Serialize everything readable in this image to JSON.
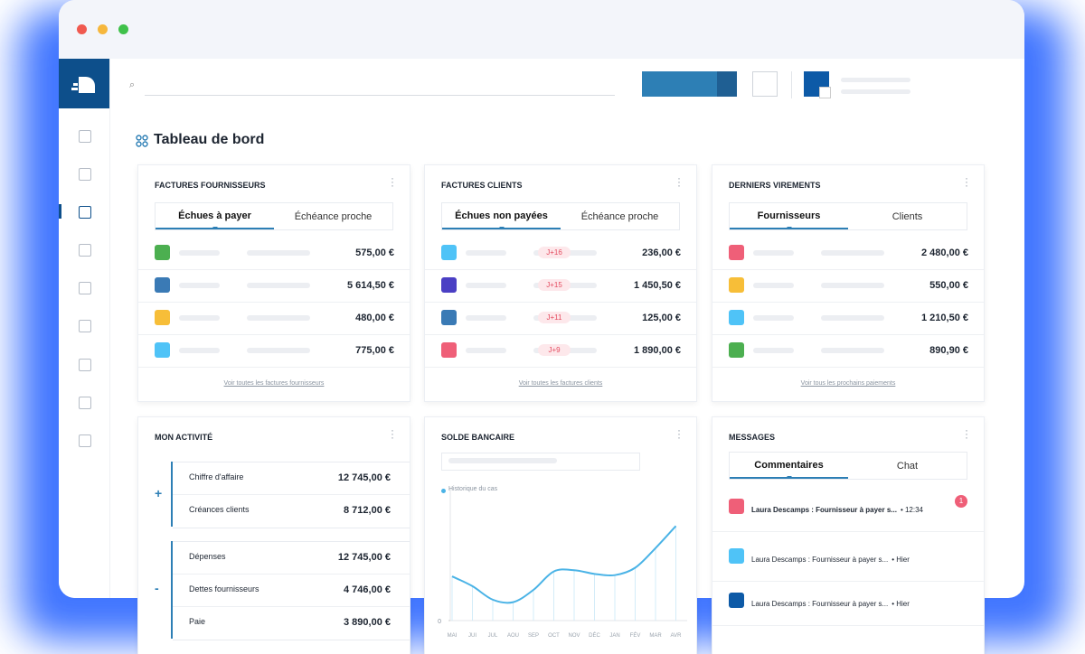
{
  "page": {
    "title": "Tableau de bord"
  },
  "cards": [
    {
      "title": "FACTURES FOURNISSEURS",
      "tabs": [
        "Échues à payer",
        "Échéance proche"
      ],
      "rows": [
        {
          "color": "#4caf50",
          "amount": "575,00 €"
        },
        {
          "color": "#3a7ab5",
          "amount": "5 614,50 €"
        },
        {
          "color": "#f7be38",
          "amount": "480,00 €"
        },
        {
          "color": "#4fc3f7",
          "amount": "775,00 €"
        }
      ],
      "link": "Voir toutes les factures fournisseurs"
    },
    {
      "title": "FACTURES CLIENTS",
      "tabs": [
        "Échues non payées",
        "Échéance proche"
      ],
      "rows": [
        {
          "color": "#4fc3f7",
          "badge": "J+16",
          "amount": "236,00 €"
        },
        {
          "color": "#4a3fc4",
          "badge": "J+15",
          "amount": "1 450,50 €"
        },
        {
          "color": "#3a7ab5",
          "badge": "J+11",
          "amount": "125,00 €"
        },
        {
          "color": "#ef5f78",
          "badge": "J+9",
          "amount": "1 890,00 €"
        }
      ],
      "link": "Voir toutes les factures clients"
    },
    {
      "title": "DERNIERS VIREMENTS",
      "tabs": [
        "Fournisseurs",
        "Clients"
      ],
      "rows": [
        {
          "color": "#ef5f78",
          "amount": "2 480,00 €"
        },
        {
          "color": "#f7be38",
          "amount": "550,00 €"
        },
        {
          "color": "#4fc3f7",
          "amount": "1 210,50 €"
        },
        {
          "color": "#4caf50",
          "amount": "890,90 €"
        }
      ],
      "link": "Voir tous les prochains paiements"
    }
  ],
  "activity": {
    "title": "MON ACTIVITÉ",
    "groups": [
      {
        "sign": "+",
        "rows": [
          {
            "label": "Chiffre d'affaire",
            "amount": "12 745,00 €"
          },
          {
            "label": "Créances clients",
            "amount": "8 712,00 €"
          }
        ]
      },
      {
        "sign": "-",
        "rows": [
          {
            "label": "Dépenses",
            "amount": "12 745,00 €"
          },
          {
            "label": "Dettes fournisseurs",
            "amount": "4 746,00 €"
          },
          {
            "label": "Paie",
            "amount": "3 890,00 €"
          }
        ]
      }
    ]
  },
  "chart_data": {
    "type": "line",
    "title": "SOLDE BANCAIRE",
    "legend": "Historique du cas",
    "categories": [
      "MAI",
      "JUI",
      "JUL",
      "AOU",
      "SEP",
      "OCT",
      "NOV",
      "DÉC",
      "JAN",
      "FÉV",
      "MAR",
      "AVR"
    ],
    "series": [
      {
        "name": "Historique du cas",
        "color": "#4ab3e6",
        "values": [
          36,
          28,
          17,
          15,
          25,
          40,
          41,
          38,
          37,
          43,
          59,
          77
        ]
      }
    ],
    "ylim": [
      0,
      100
    ],
    "yticks": [
      0
    ]
  },
  "messages": {
    "title": "MESSAGES",
    "tabs": [
      "Commentaires",
      "Chat"
    ],
    "items": [
      {
        "color": "#ef5f78",
        "text": "Laura Descamps : Fournisseur à payer s...",
        "time": "• 12:34",
        "badge": "1",
        "unread": true
      },
      {
        "color": "#4fc3f7",
        "text": "Laura Descamps : Fournisseur à payer s...",
        "time": "• Hier"
      },
      {
        "color": "#0d5aa7",
        "text": "Laura Descamps : Fournisseur à payer s...",
        "time": "• Hier"
      }
    ]
  }
}
